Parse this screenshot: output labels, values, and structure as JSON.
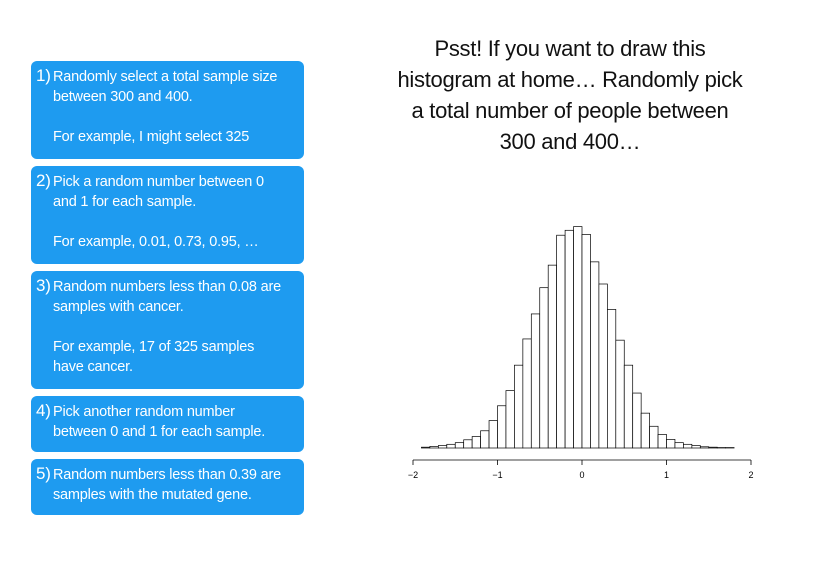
{
  "steps": [
    {
      "number": "1)",
      "lines": [
        "Randomly select a total sample size",
        "between 300 and 400."
      ],
      "example": [
        "For example, I might select 325"
      ]
    },
    {
      "number": "2)",
      "lines": [
        "Pick a random number between 0",
        "and 1 for each sample."
      ],
      "example": [
        "For example, 0.01, 0.73, 0.95, …"
      ]
    },
    {
      "number": "3)",
      "lines": [
        "Random numbers less than 0.08 are",
        "samples with cancer."
      ],
      "example": [
        "For example, 17 of 325 samples",
        "have cancer."
      ]
    },
    {
      "number": "4)",
      "lines": [
        "Pick another random number",
        "between 0 and 1 for each sample."
      ],
      "example": []
    },
    {
      "number": "5)",
      "lines": [
        "Random numbers less than 0.39 are",
        "samples with the mutated gene."
      ],
      "example": []
    }
  ],
  "note": {
    "lines": [
      "Psst! If you want to draw this",
      "histogram at home… Randomly pick",
      "a total number of people between",
      "300 and 400…"
    ]
  },
  "colors": {
    "step_box": "#1E9BF0",
    "step_text": "#FFFFFF",
    "bar_fill": "#FFFFFF",
    "bar_stroke": "#000000"
  },
  "chart_data": {
    "type": "bar",
    "xlim": [
      -2,
      2
    ],
    "ylim": [
      0,
      60
    ],
    "ticks": [
      -2,
      -1,
      0,
      1,
      2
    ],
    "tick_labels": [
      "−2",
      "−1",
      "0",
      "1",
      "2"
    ],
    "bin_width": 0.1,
    "bin_start": -1.9,
    "values": [
      0.2,
      0.4,
      0.6,
      0.9,
      1.3,
      2.0,
      2.8,
      4.2,
      6.7,
      10.3,
      14.0,
      20.2,
      26.6,
      32.7,
      39.1,
      44.6,
      51.9,
      53.1,
      54.0,
      52.1,
      45.4,
      40.0,
      33.8,
      26.3,
      20.2,
      13.4,
      8.5,
      5.3,
      3.3,
      2.1,
      1.3,
      0.9,
      0.6,
      0.3,
      0.2,
      0.1,
      0.1
    ]
  }
}
